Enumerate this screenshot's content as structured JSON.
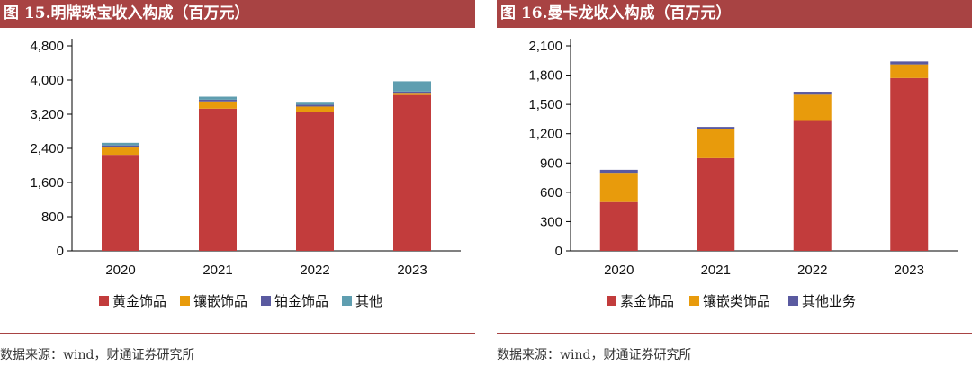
{
  "chart_data": [
    {
      "type": "bar",
      "stacked": true,
      "title": "图 15.明牌珠宝收入构成（百万元）",
      "categories": [
        "2020",
        "2021",
        "2022",
        "2023"
      ],
      "ylim": [
        0,
        4800
      ],
      "yticks": [
        0,
        800,
        1600,
        2400,
        3200,
        4000,
        4800
      ],
      "ytick_labels": [
        "0",
        "800",
        "1,600",
        "2,400",
        "3,200",
        "4,000",
        "4,800"
      ],
      "xlabel": "",
      "ylabel": "",
      "series": [
        {
          "name": "黄金饰品",
          "color": "#c23c3c",
          "values": [
            2250,
            3330,
            3260,
            3650
          ]
        },
        {
          "name": "镶嵌饰品",
          "color": "#e89b0c",
          "values": [
            170,
            170,
            120,
            50
          ]
        },
        {
          "name": "铂金饰品",
          "color": "#5a5aa0",
          "values": [
            50,
            40,
            40,
            30
          ]
        },
        {
          "name": "其他",
          "color": "#5f9eb0",
          "values": [
            60,
            70,
            70,
            240
          ]
        }
      ],
      "legend_position": "bottom",
      "source": "数据来源：wind，财通证券研究所"
    },
    {
      "type": "bar",
      "stacked": true,
      "title": "图 16.曼卡龙收入构成（百万元）",
      "categories": [
        "2020",
        "2021",
        "2022",
        "2023"
      ],
      "ylim": [
        0,
        2100
      ],
      "yticks": [
        0,
        300,
        600,
        900,
        1200,
        1500,
        1800,
        2100
      ],
      "ytick_labels": [
        "0",
        "300",
        "600",
        "900",
        "1,200",
        "1,500",
        "1,800",
        "2,100"
      ],
      "xlabel": "",
      "ylabel": "",
      "series": [
        {
          "name": "素金饰品",
          "color": "#c23c3c",
          "values": [
            500,
            950,
            1340,
            1770
          ]
        },
        {
          "name": "镶嵌类饰品",
          "color": "#e89b0c",
          "values": [
            300,
            300,
            260,
            140
          ]
        },
        {
          "name": "其他业务",
          "color": "#5a5aa0",
          "values": [
            30,
            20,
            30,
            30
          ]
        }
      ],
      "legend_position": "bottom",
      "source": "数据来源：wind，财通证券研究所"
    }
  ]
}
